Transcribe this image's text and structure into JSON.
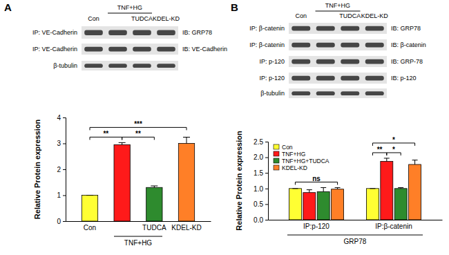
{
  "chart_data": [
    {
      "type": "bar",
      "panel_label": "A",
      "y_label": "Relative Protein expression",
      "categories": [
        "Con",
        null,
        "TUDCA",
        "KDEL-KD"
      ],
      "category_group": {
        "label": "TNF+HG",
        "from": 1,
        "to": 2
      },
      "values": [
        1,
        2.95,
        1.3,
        3.0
      ],
      "errors": [
        0,
        0.08,
        0.06,
        0.24
      ],
      "colors": [
        "#ffff33",
        "#ff1a1a",
        "#2e8b2e",
        "#ff7f27"
      ],
      "ylim": [
        0,
        4
      ],
      "yticks": [
        0,
        1,
        2,
        3,
        4
      ],
      "significance": [
        {
          "from": 0,
          "to": 1,
          "label": "**"
        },
        {
          "from": 1,
          "to": 2,
          "label": "**"
        },
        {
          "from": 0,
          "to": 3,
          "label": "***"
        }
      ],
      "blot": {
        "lanes": [
          "Con",
          null,
          "TUDCA",
          "KDEL-KD"
        ],
        "lane_group": {
          "label": "TNF+HG",
          "from": 1,
          "to": 2
        },
        "rows": [
          {
            "left": "IP: VE-Cadherin",
            "right": "IB: GRP78"
          },
          {
            "left": "IP: VE-Cadherin",
            "right": "IB: VE-Cadherin"
          },
          {
            "left": "β-tubulin"
          }
        ]
      }
    },
    {
      "type": "bar",
      "panel_label": "B",
      "y_label": "Relative Protein expression",
      "categories": [
        "IP:p-120",
        "IP:β-catenin"
      ],
      "category_group": {
        "label": "GRP78",
        "from": 0,
        "to": 1
      },
      "series": [
        {
          "name": "Con",
          "color": "#ffff33",
          "values": [
            1,
            1
          ],
          "errors": [
            0,
            0
          ]
        },
        {
          "name": "TNF+HG",
          "color": "#ff1a1a",
          "values": [
            0.87,
            1.87
          ],
          "errors": [
            0.09,
            0.1
          ]
        },
        {
          "name": "TNF+HG+TUDCA",
          "color": "#2e8b2e",
          "values": [
            0.9,
            1.0
          ],
          "errors": [
            0.13,
            0.03
          ]
        },
        {
          "name": "KDEL-KD",
          "color": "#ff7f27",
          "values": [
            0.98,
            1.77
          ],
          "errors": [
            0.05,
            0.14
          ]
        }
      ],
      "legend": "upper left",
      "ylim": [
        0,
        2.5
      ],
      "yticks": [
        {
          "value": 0,
          "label": "0.0"
        },
        {
          "value": 0.5,
          "label": "0.5"
        },
        {
          "value": 1,
          "label": "1.0"
        },
        {
          "value": 1.5,
          "label": "1.5"
        },
        {
          "value": 2,
          "label": "2.0"
        },
        {
          "value": 2.5,
          "label": "2.5"
        }
      ],
      "significance": [
        {
          "category": 0,
          "from": 0,
          "to": 3,
          "label": "ns"
        },
        {
          "category": 1,
          "from": 0,
          "to": 1,
          "label": "**"
        },
        {
          "category": 1,
          "from": 1,
          "to": 2,
          "label": "*"
        },
        {
          "category": 1,
          "from": 0,
          "to": 3,
          "label": "*"
        }
      ],
      "blot": {
        "lanes": [
          "Con",
          null,
          "TUDCA",
          "KDEL-KD"
        ],
        "lane_group": {
          "label": "TNF+HG",
          "from": 1,
          "to": 2
        },
        "rows": [
          {
            "left": "IP: β-catenin",
            "right": "IB: GRP78"
          },
          {
            "left": "IP: β-catenin",
            "right": "IB: β-catenin"
          },
          {
            "left": "IP: p-120",
            "right": "IB: GRP-78"
          },
          {
            "left": "IP: p-120",
            "right": "IB: p-120"
          },
          {
            "left": "β-tubulin"
          }
        ]
      }
    }
  ]
}
